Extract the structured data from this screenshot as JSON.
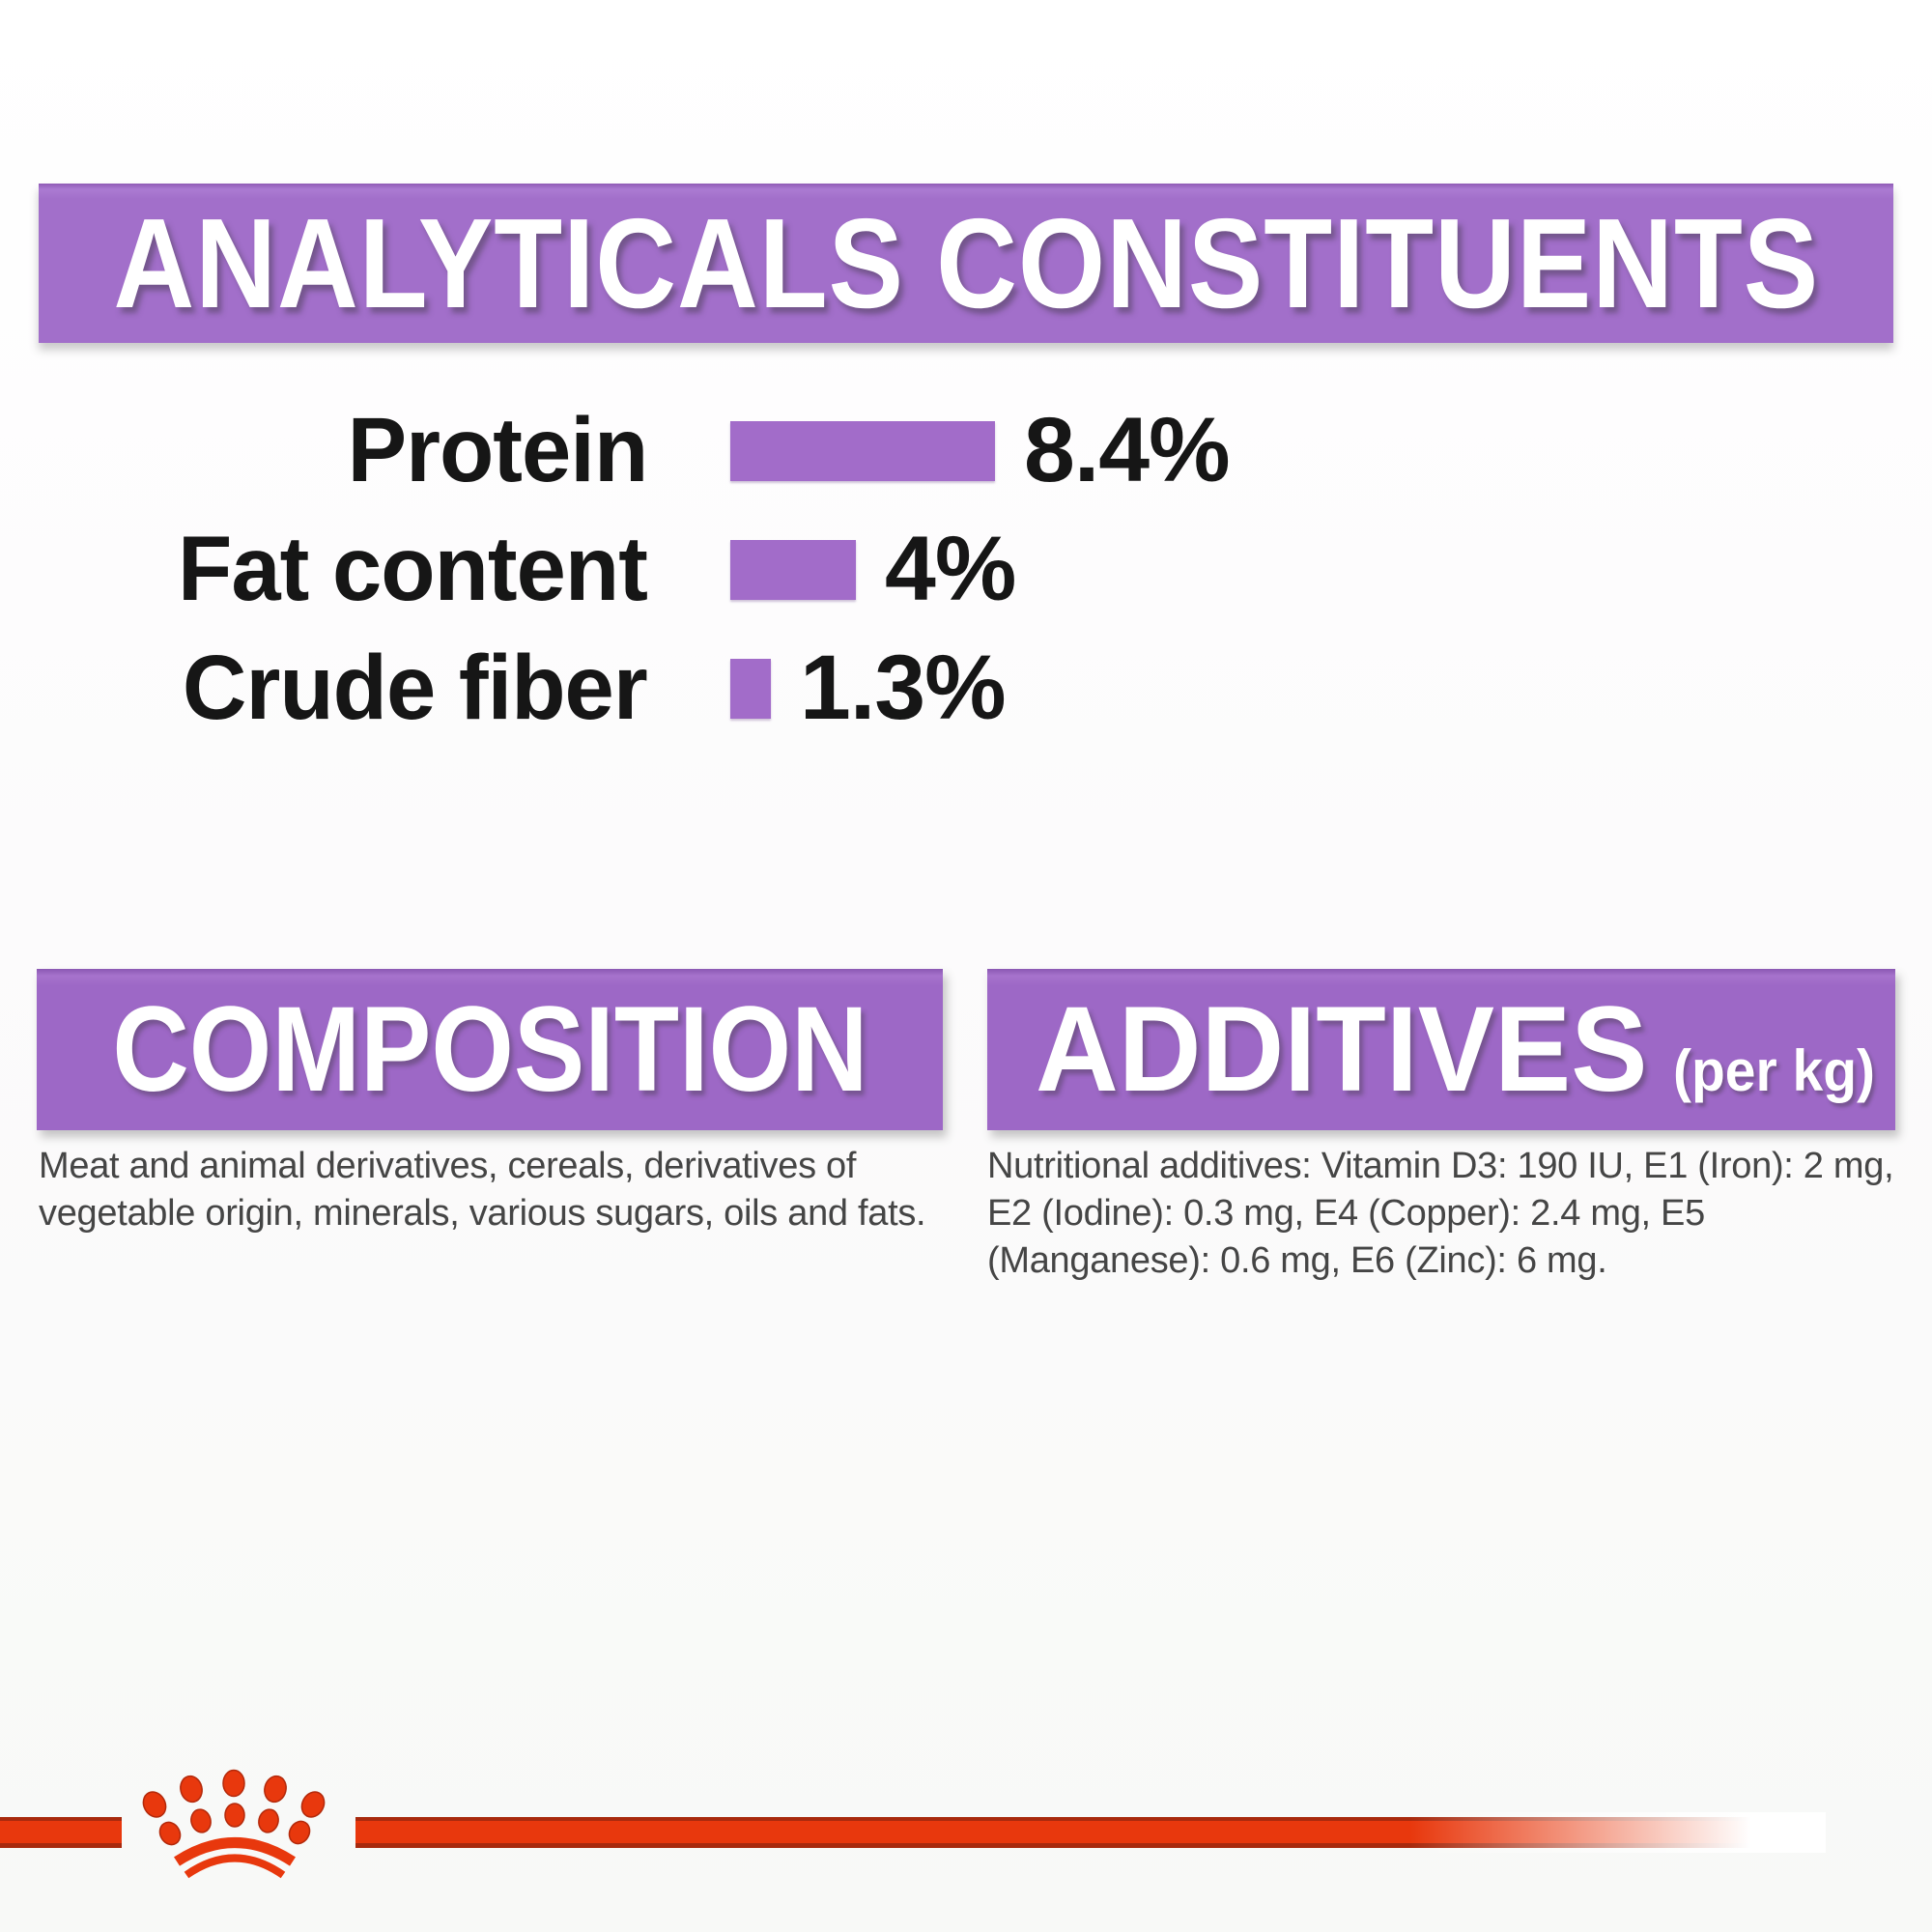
{
  "analyticals": {
    "title": "ANALYTICALS CONSTITUENTS"
  },
  "chart_data": {
    "type": "bar",
    "orientation": "horizontal",
    "title": "ANALYTICALS CONSTITUENTS",
    "categories": [
      "Protein",
      "Fat content",
      "Crude fiber"
    ],
    "values": [
      8.4,
      4,
      1.3
    ],
    "value_labels": [
      "8.4%",
      "4%",
      "1.3%"
    ],
    "unit": "%",
    "xlim": [
      0,
      10
    ],
    "gridlines": false,
    "legend": false,
    "bar_color": "#a26cc9",
    "label_color": "#161616"
  },
  "composition": {
    "title": "COMPOSITION",
    "body": "Meat and animal derivatives, cereals, derivatives of vegetable origin, minerals, various sugars, oils and fats."
  },
  "additives": {
    "title": "ADDITIVES",
    "unit_label": "(per kg)",
    "body": "Nutritional additives: Vitamin D3: 190 IU, E1 (Iron): 2 mg, E2 (Iodine): 0.3 mg, E4 (Copper): 2.4 mg, E5 (Manganese): 0.6 mg, E6 (Zinc): 6 mg."
  },
  "footer": {
    "logo": "royal-canin-crown",
    "brand_red": "#e8380d"
  },
  "colors": {
    "banner_purple": "#a26fca",
    "section_purple": "#9d68c6",
    "bar_purple": "#a26cc9",
    "heading_text": "#ffffff",
    "label_text": "#161616",
    "body_text": "#454545",
    "brand_red": "#e8380d"
  }
}
